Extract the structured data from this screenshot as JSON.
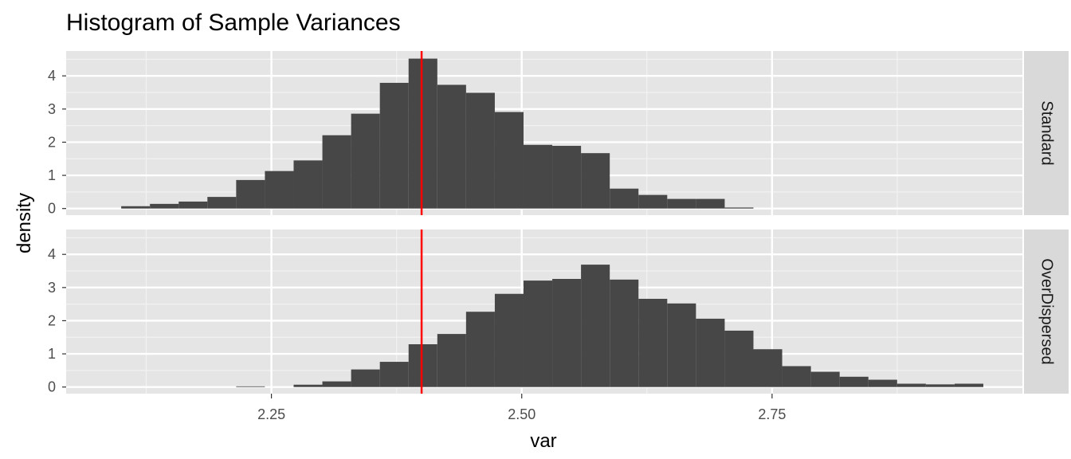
{
  "chart_data": {
    "type": "bar",
    "title": "Histogram of Sample Variances",
    "xlabel": "var",
    "ylabel": "density",
    "xlim": [
      2.045,
      3.0
    ],
    "ylim": [
      -0.2,
      4.75
    ],
    "x_ticks": [
      "2.25",
      "2.50",
      "2.75"
    ],
    "x_tick_values": [
      2.25,
      2.5,
      2.75
    ],
    "y_ticks": [
      "0",
      "1",
      "2",
      "3",
      "4"
    ],
    "y_tick_values": [
      0,
      1,
      2,
      3,
      4
    ],
    "bin_width": 0.0287,
    "reference_line": {
      "x": 2.4,
      "color": "#ff0000"
    },
    "bar_color": "#474747",
    "panel_background": "#e5e5e5",
    "strip_background": "#d9d9d9",
    "grid": true,
    "facets": [
      {
        "label": "Standard",
        "bins": [
          {
            "x": 2.1,
            "y": 0.07
          },
          {
            "x": 2.1287,
            "y": 0.14
          },
          {
            "x": 2.1574,
            "y": 0.21
          },
          {
            "x": 2.1861,
            "y": 0.35
          },
          {
            "x": 2.2148,
            "y": 0.86
          },
          {
            "x": 2.2435,
            "y": 1.13
          },
          {
            "x": 2.2722,
            "y": 1.45
          },
          {
            "x": 2.3009,
            "y": 2.21
          },
          {
            "x": 2.3296,
            "y": 2.86
          },
          {
            "x": 2.3583,
            "y": 3.79
          },
          {
            "x": 2.387,
            "y": 4.52
          },
          {
            "x": 2.4157,
            "y": 3.73
          },
          {
            "x": 2.4444,
            "y": 3.49
          },
          {
            "x": 2.4731,
            "y": 2.91
          },
          {
            "x": 2.5018,
            "y": 1.92
          },
          {
            "x": 2.5305,
            "y": 1.89
          },
          {
            "x": 2.5592,
            "y": 1.67
          },
          {
            "x": 2.5879,
            "y": 0.6
          },
          {
            "x": 2.6166,
            "y": 0.41
          },
          {
            "x": 2.6453,
            "y": 0.29
          },
          {
            "x": 2.674,
            "y": 0.29
          },
          {
            "x": 2.7027,
            "y": 0.03
          }
        ]
      },
      {
        "label": "OverDispersed",
        "bins": [
          {
            "x": 2.2148,
            "y": 0.02
          },
          {
            "x": 2.2722,
            "y": 0.07
          },
          {
            "x": 2.3009,
            "y": 0.17
          },
          {
            "x": 2.3296,
            "y": 0.53
          },
          {
            "x": 2.3583,
            "y": 0.76
          },
          {
            "x": 2.387,
            "y": 1.29
          },
          {
            "x": 2.4157,
            "y": 1.6
          },
          {
            "x": 2.4444,
            "y": 2.27
          },
          {
            "x": 2.4731,
            "y": 2.81
          },
          {
            "x": 2.5018,
            "y": 3.21
          },
          {
            "x": 2.5305,
            "y": 3.26
          },
          {
            "x": 2.5592,
            "y": 3.69
          },
          {
            "x": 2.5879,
            "y": 3.24
          },
          {
            "x": 2.6166,
            "y": 2.66
          },
          {
            "x": 2.6453,
            "y": 2.52
          },
          {
            "x": 2.674,
            "y": 2.06
          },
          {
            "x": 2.7027,
            "y": 1.7
          },
          {
            "x": 2.7314,
            "y": 1.14
          },
          {
            "x": 2.7601,
            "y": 0.63
          },
          {
            "x": 2.7888,
            "y": 0.46
          },
          {
            "x": 2.8175,
            "y": 0.31
          },
          {
            "x": 2.8462,
            "y": 0.22
          },
          {
            "x": 2.8749,
            "y": 0.1
          },
          {
            "x": 2.9036,
            "y": 0.08
          },
          {
            "x": 2.9323,
            "y": 0.1
          }
        ]
      }
    ]
  }
}
